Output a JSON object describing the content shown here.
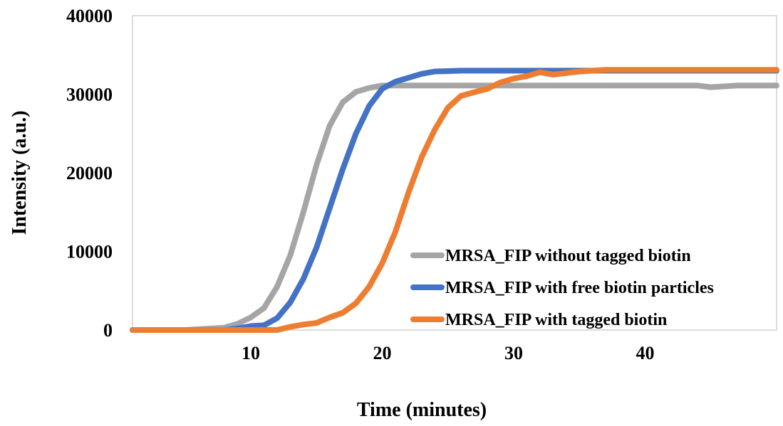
{
  "chart_data": {
    "type": "line",
    "title": "",
    "xlabel": "Time (minutes)",
    "ylabel": "Intensity (a.u.)",
    "xlim": [
      1,
      50
    ],
    "ylim": [
      0,
      40000
    ],
    "x_ticks": [
      10,
      20,
      30,
      40
    ],
    "x_tick_labels": [
      "10",
      "20",
      "30",
      "40"
    ],
    "y_ticks": [
      0,
      10000,
      20000,
      30000,
      40000
    ],
    "y_tick_labels": [
      "0",
      "10000",
      "20000",
      "30000",
      "40000"
    ],
    "grid": false,
    "legend_position": "right",
    "series": [
      {
        "name": "MRSA_FIP without tagged biotin",
        "color": "#a5a5a5",
        "x": [
          1,
          5,
          8,
          9,
          10,
          11,
          12,
          13,
          14,
          15,
          16,
          17,
          18,
          19,
          20,
          22,
          25,
          30,
          35,
          40,
          44,
          45,
          47,
          50
        ],
        "y": [
          0,
          0,
          300,
          800,
          1600,
          2800,
          5500,
          9500,
          15000,
          21000,
          26000,
          29000,
          30300,
          30800,
          31100,
          31100,
          31100,
          31100,
          31100,
          31100,
          31100,
          30900,
          31100,
          31100
        ]
      },
      {
        "name": "MRSA_FIP with free biotin particles",
        "color": "#4472c4",
        "x": [
          1,
          8,
          9,
          10,
          11,
          12,
          13,
          14,
          15,
          16,
          17,
          18,
          19,
          20,
          21,
          22,
          23,
          24,
          26,
          30,
          35,
          40,
          50
        ],
        "y": [
          0,
          0,
          200,
          500,
          600,
          1500,
          3500,
          6500,
          10500,
          15500,
          20500,
          25000,
          28500,
          30700,
          31600,
          32100,
          32600,
          32900,
          33000,
          33000,
          33000,
          33000,
          33000
        ]
      },
      {
        "name": "MRSA_FIP with tagged biotin",
        "color": "#ed7d31",
        "x": [
          1,
          12,
          13,
          14,
          15,
          16,
          17,
          18,
          19,
          20,
          21,
          22,
          23,
          24,
          25,
          26,
          28,
          29,
          30,
          31,
          32,
          33,
          35,
          37,
          40,
          42,
          50
        ],
        "y": [
          0,
          0,
          400,
          700,
          900,
          1600,
          2200,
          3400,
          5500,
          8500,
          12500,
          17500,
          22000,
          25500,
          28300,
          29800,
          30700,
          31500,
          32000,
          32300,
          32800,
          32500,
          32900,
          33100,
          33100,
          33100,
          33100
        ]
      }
    ]
  }
}
